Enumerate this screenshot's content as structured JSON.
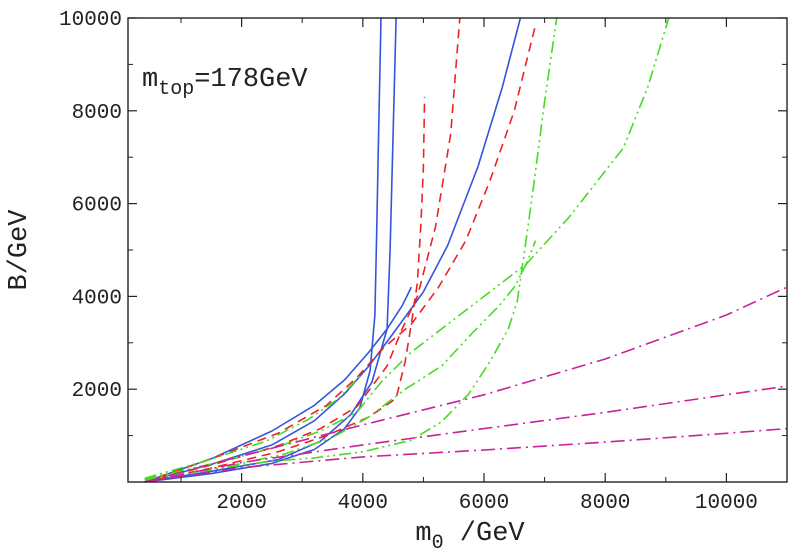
{
  "chart_data": {
    "type": "line",
    "xlabel": {
      "base": "m",
      "sub": "0",
      "rest": " /GeV"
    },
    "ylabel": "B/GeV",
    "annotation": {
      "base": "m",
      "sub": "top",
      "rest": "=178GeV"
    },
    "xlim": [
      125,
      11000
    ],
    "ylim": [
      0,
      10000
    ],
    "xticks": [
      2000,
      4000,
      6000,
      8000,
      10000
    ],
    "yticks": [
      2000,
      4000,
      6000,
      8000,
      10000
    ],
    "colors": {
      "blue": "#3355dd",
      "red": "#ee2222",
      "green": "#44dd22",
      "magenta": "#cc2299",
      "frame": "#222222"
    },
    "series": [
      {
        "color": "blue",
        "style": "solid",
        "points": [
          [
            400,
            0
          ],
          [
            1500,
            180
          ],
          [
            2500,
            400
          ],
          [
            3200,
            700
          ],
          [
            3700,
            1150
          ],
          [
            3950,
            1600
          ],
          [
            4120,
            2400
          ],
          [
            4200,
            3600
          ],
          [
            4230,
            5500
          ],
          [
            4260,
            7500
          ],
          [
            4300,
            10000
          ]
        ]
      },
      {
        "color": "blue",
        "style": "solid",
        "points": [
          [
            400,
            0
          ],
          [
            1500,
            230
          ],
          [
            2600,
            480
          ],
          [
            3300,
            880
          ],
          [
            3800,
            1450
          ],
          [
            4150,
            2150
          ],
          [
            4400,
            3300
          ],
          [
            4450,
            5000
          ],
          [
            4500,
            7500
          ],
          [
            4550,
            10000
          ]
        ]
      },
      {
        "color": "blue",
        "style": "solid",
        "points": [
          [
            400,
            0
          ],
          [
            1500,
            380
          ],
          [
            2500,
            800
          ],
          [
            3200,
            1320
          ],
          [
            3700,
            1900
          ],
          [
            4100,
            2500
          ],
          [
            4500,
            3200
          ],
          [
            5000,
            4100
          ],
          [
            5400,
            5100
          ],
          [
            5900,
            6800
          ],
          [
            6300,
            8500
          ],
          [
            6600,
            10000
          ]
        ]
      },
      {
        "color": "blue",
        "style": "solid",
        "points": [
          [
            400,
            0
          ],
          [
            1500,
            500
          ],
          [
            2500,
            1100
          ],
          [
            3200,
            1650
          ],
          [
            3700,
            2200
          ],
          [
            4100,
            2800
          ],
          [
            4400,
            3300
          ],
          [
            4650,
            3800
          ],
          [
            4800,
            4200
          ]
        ]
      },
      {
        "color": "red",
        "style": "dashed",
        "points": [
          [
            400,
            0
          ],
          [
            1500,
            300
          ],
          [
            2600,
            650
          ],
          [
            3400,
            1000
          ],
          [
            4100,
            1400
          ],
          [
            4550,
            1800
          ],
          [
            4700,
            2600
          ],
          [
            4800,
            3400
          ],
          [
            4900,
            4300
          ],
          [
            4960,
            5600
          ],
          [
            5000,
            6800
          ],
          [
            5020,
            8300
          ]
        ]
      },
      {
        "color": "red",
        "style": "dashed",
        "points": [
          [
            400,
            0
          ],
          [
            1600,
            400
          ],
          [
            2600,
            780
          ],
          [
            3300,
            1150
          ],
          [
            3900,
            1620
          ],
          [
            4400,
            2500
          ],
          [
            4650,
            3300
          ],
          [
            4900,
            4000
          ],
          [
            5200,
            5500
          ],
          [
            5450,
            7500
          ],
          [
            5600,
            10000
          ]
        ]
      },
      {
        "color": "red",
        "style": "dashed",
        "points": [
          [
            400,
            0
          ],
          [
            1600,
            550
          ],
          [
            2600,
            1050
          ],
          [
            3400,
            1650
          ],
          [
            3900,
            2250
          ],
          [
            4350,
            2900
          ],
          [
            4800,
            3400
          ],
          [
            5250,
            4200
          ],
          [
            5700,
            5200
          ],
          [
            6100,
            6500
          ],
          [
            6500,
            8000
          ],
          [
            6850,
            9850
          ]
        ]
      },
      {
        "color": "green",
        "style": "dashdot2",
        "points": [
          [
            400,
            60
          ],
          [
            1500,
            280
          ],
          [
            2500,
            450
          ],
          [
            3200,
            520
          ],
          [
            4000,
            650
          ],
          [
            4800,
            900
          ],
          [
            5300,
            1300
          ],
          [
            5750,
            1900
          ],
          [
            6100,
            2600
          ],
          [
            6400,
            3300
          ],
          [
            6550,
            3900
          ],
          [
            6650,
            4800
          ],
          [
            6800,
            6200
          ],
          [
            7000,
            8200
          ],
          [
            7200,
            10000
          ]
        ]
      },
      {
        "color": "green",
        "style": "dashdot2",
        "points": [
          [
            400,
            40
          ],
          [
            1500,
            260
          ],
          [
            2700,
            600
          ],
          [
            3500,
            960
          ],
          [
            4100,
            1400
          ],
          [
            4700,
            2000
          ],
          [
            5300,
            2500
          ],
          [
            5800,
            3200
          ],
          [
            6250,
            3800
          ],
          [
            6500,
            4200
          ],
          [
            6700,
            4700
          ],
          [
            6850,
            5200
          ]
        ]
      },
      {
        "color": "green",
        "style": "dashdot2",
        "points": [
          [
            400,
            60
          ],
          [
            1600,
            420
          ],
          [
            2600,
            760
          ],
          [
            3300,
            1100
          ],
          [
            3900,
            1500
          ],
          [
            4300,
            2150
          ],
          [
            4800,
            2800
          ],
          [
            5400,
            3400
          ],
          [
            6000,
            4000
          ],
          [
            6700,
            4700
          ],
          [
            7400,
            5700
          ],
          [
            8300,
            7200
          ],
          [
            8700,
            8500
          ],
          [
            9050,
            10000
          ]
        ]
      },
      {
        "color": "green",
        "style": "dashdot2",
        "points": [
          [
            400,
            80
          ],
          [
            1400,
            450
          ],
          [
            2400,
            880
          ],
          [
            3100,
            1350
          ],
          [
            3600,
            1800
          ],
          [
            4000,
            2350
          ]
        ]
      },
      {
        "color": "magenta",
        "style": "dashdot",
        "points": [
          [
            400,
            0
          ],
          [
            2000,
            310
          ],
          [
            4000,
            540
          ],
          [
            6000,
            690
          ],
          [
            8000,
            860
          ],
          [
            10000,
            1050
          ],
          [
            11000,
            1150
          ]
        ]
      },
      {
        "color": "magenta",
        "style": "dashdot",
        "points": [
          [
            400,
            0
          ],
          [
            2000,
            420
          ],
          [
            4000,
            800
          ],
          [
            6000,
            1150
          ],
          [
            8000,
            1500
          ],
          [
            10000,
            1880
          ],
          [
            11000,
            2070
          ]
        ]
      },
      {
        "color": "magenta",
        "style": "dashdot",
        "points": [
          [
            400,
            0
          ],
          [
            2000,
            560
          ],
          [
            4000,
            1230
          ],
          [
            6000,
            1880
          ],
          [
            8000,
            2650
          ],
          [
            10000,
            3600
          ],
          [
            11000,
            4200
          ]
        ]
      }
    ]
  }
}
